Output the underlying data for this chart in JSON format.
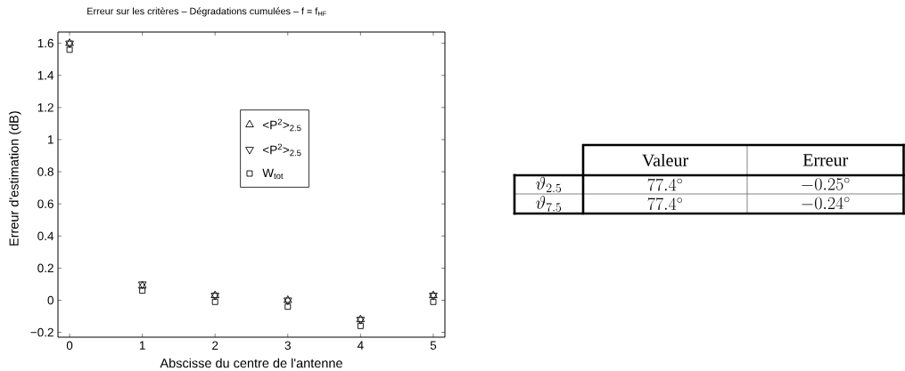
{
  "chart_data": [
    {
      "type": "scatter",
      "title": "Erreur sur les critères – Dégradations cumulées – f = f$_{HF}$",
      "xlabel": "Abscisse du centre de l'antenne",
      "ylabel": "Erreur d'estimation (dB)",
      "x": [
        0,
        1,
        2,
        3,
        4,
        5
      ],
      "series": [
        {
          "name": "<P$^{2}$>$_{2.5}$",
          "color": "#000000",
          "marker": "triangle",
          "values": [
            1.6,
            0.09,
            0.03,
            0,
            -0.12,
            0.03
          ]
        },
        {
          "name": "<P$^{2}$>$_{2.5}$",
          "color": "#000000",
          "marker": "triangle-down",
          "values": [
            1.6,
            0.1,
            0.03,
            0,
            -0.12,
            0.03
          ]
        },
        {
          "name": "W$_{tot}$",
          "color": "#000000",
          "marker": "square",
          "values": [
            1.56,
            0.06,
            -0.01,
            -0.04,
            -0.16,
            -0.01
          ]
        }
      ],
      "xlim": [
        -0.16,
        5.16
      ],
      "ylim": [
        -0.23,
        1.67
      ],
      "xticks": [
        0,
        1,
        2,
        3,
        4,
        5
      ],
      "yticks": [
        {
          "value": -0.2,
          "label": "−0.2"
        },
        0,
        0.2,
        0.4,
        0.6,
        0.8,
        1,
        1.2,
        1.4,
        1.6
      ],
      "legend": "center"
    },
    {
      "type": "other",
      "categories": [
        "Valeur",
        "Erreur"
      ],
      "y_categories": [
        "\\vartheta_{2.5}",
        "\\vartheta_{7.5}"
      ],
      "cell_labels": [
        [
          "77.4^\\circ",
          "-0.25^\\circ"
        ],
        [
          "77.4^\\circ",
          "-0.24^\\circ"
        ]
      ]
    }
  ]
}
